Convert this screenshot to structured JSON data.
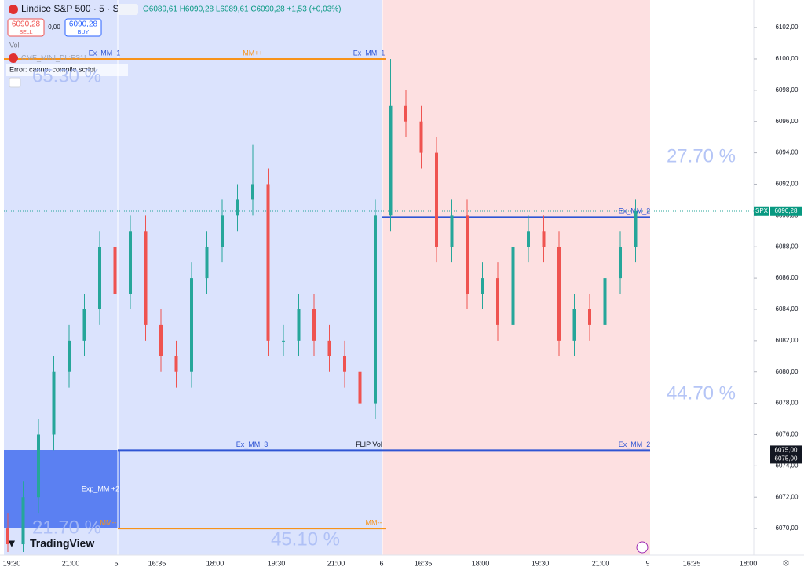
{
  "header": {
    "symbol": "Lindice S&P 500 · 5 · SP",
    "ohlc": "O6089,61 H6090,28 L6089,61 C6090,28 +1,53 (+0,03%)",
    "sell_price": "6090,28",
    "sell": "SELL",
    "spread": "0,00",
    "buy_price": "6090,28",
    "buy": "BUY",
    "vol": "Vol",
    "second_symbol": "CME_MINI_DL:ES1!",
    "error": "Error: cannot compile script",
    "logo": "TradingView"
  },
  "chart_data": {
    "type": "candlestick",
    "up_color": "#26a69a",
    "down_color": "#ef5350",
    "ylim": [
      6068.3,
      6103.76
    ],
    "yticks": [
      {
        "value": 6102,
        "label": "6102,00"
      },
      {
        "value": 6100,
        "label": "6100,00"
      },
      {
        "value": 6098,
        "label": "6098,00"
      },
      {
        "value": 6096,
        "label": "6096,00"
      },
      {
        "value": 6094,
        "label": "6094,00"
      },
      {
        "value": 6092,
        "label": "6092,00"
      },
      {
        "value": 6090,
        "label": "6090,00"
      },
      {
        "value": 6088,
        "label": "6088,00"
      },
      {
        "value": 6086,
        "label": "6086,00"
      },
      {
        "value": 6084,
        "label": "6084,00"
      },
      {
        "value": 6082,
        "label": "6082,00"
      },
      {
        "value": 6080,
        "label": "6080,00"
      },
      {
        "value": 6078,
        "label": "6078,00"
      },
      {
        "value": 6076,
        "label": "6076,00"
      },
      {
        "value": 6074,
        "label": "6074,00"
      },
      {
        "value": 6072,
        "label": "6072,00"
      },
      {
        "value": 6070,
        "label": "6070,00"
      }
    ],
    "x_labels": [
      "19:30",
      "21:00",
      "5",
      "16:35",
      "18:00",
      "19:30",
      "21:00",
      "6",
      "16:35",
      "18:00",
      "19:30",
      "21:00",
      "9",
      "16:35",
      "18:00"
    ],
    "open": [
      6070,
      6069,
      6072,
      6076,
      6080,
      6082,
      6084,
      6088,
      6085,
      6089,
      6083,
      6081,
      6080,
      6086,
      6088,
      6090,
      6091,
      6092,
      6082,
      6082,
      6084,
      6082,
      6081,
      6080,
      6078,
      6090,
      6097,
      6096,
      6094,
      6088,
      6090,
      6085,
      6086,
      6083,
      6088,
      6089,
      6088,
      6082,
      6084,
      6083,
      6086,
      6088
    ],
    "high": [
      6071,
      6073,
      6077,
      6081,
      6083,
      6085,
      6089,
      6089,
      6090,
      6090,
      6084,
      6082,
      6087,
      6089,
      6091,
      6092,
      6094.5,
      6093,
      6083,
      6085,
      6085,
      6083,
      6082,
      6081,
      6091,
      6100,
      6098,
      6097,
      6095,
      6091,
      6091,
      6087,
      6087,
      6089,
      6090,
      6090,
      6089,
      6085,
      6085,
      6087,
      6089,
      6091
    ],
    "low": [
      6068.5,
      6068.5,
      6071,
      6075,
      6079,
      6081,
      6083,
      6084,
      6084,
      6082,
      6080,
      6079,
      6079,
      6085,
      6087,
      6089,
      6090,
      6081,
      6081,
      6081,
      6081,
      6080,
      6079,
      6073,
      6077,
      6089,
      6095,
      6093,
      6087,
      6087,
      6084,
      6084,
      6082,
      6082,
      6087,
      6087,
      6081,
      6081,
      6082,
      6082,
      6085,
      6087
    ],
    "close": [
      6069,
      6072,
      6076,
      6080,
      6082,
      6084,
      6088,
      6085,
      6089,
      6083,
      6081,
      6080,
      6086,
      6088,
      6090,
      6091,
      6092,
      6082,
      6082,
      6084,
      6082,
      6081,
      6080,
      6078,
      6090,
      6097,
      6096,
      6094,
      6088,
      6090,
      6085,
      6086,
      6083,
      6088,
      6089,
      6088,
      6082,
      6084,
      6083,
      6086,
      6088,
      6090.28
    ],
    "levels": [
      {
        "value": 6100,
        "color": "#f7931a",
        "labels": [
          "Ex_MM_1",
          "MM++",
          "Ex_MM_1"
        ]
      },
      {
        "value": 6089.9,
        "color": "#2f55d4",
        "labels": [
          "Ex_MM_2"
        ]
      },
      {
        "value": 6075,
        "color": "#2f55d4",
        "labels": [
          "Ex_MM_3",
          "FLIP Vol",
          "Ex_MM_2"
        ]
      },
      {
        "value": 6070,
        "color": "#f7931a",
        "labels": [
          "MM--",
          "MM--"
        ]
      }
    ],
    "box_label": "Exp_MM +2",
    "zone_percents": [
      "65.30 %",
      "27.70 %",
      "44.70 %",
      "45.10 %",
      "21.70 %"
    ],
    "price_badges": [
      {
        "tag": "SPX",
        "value": 6090.28,
        "label": "6090,28"
      },
      {
        "value": 6075,
        "label": "6075,00"
      },
      {
        "value": 6075,
        "label": "6075,00"
      }
    ]
  }
}
